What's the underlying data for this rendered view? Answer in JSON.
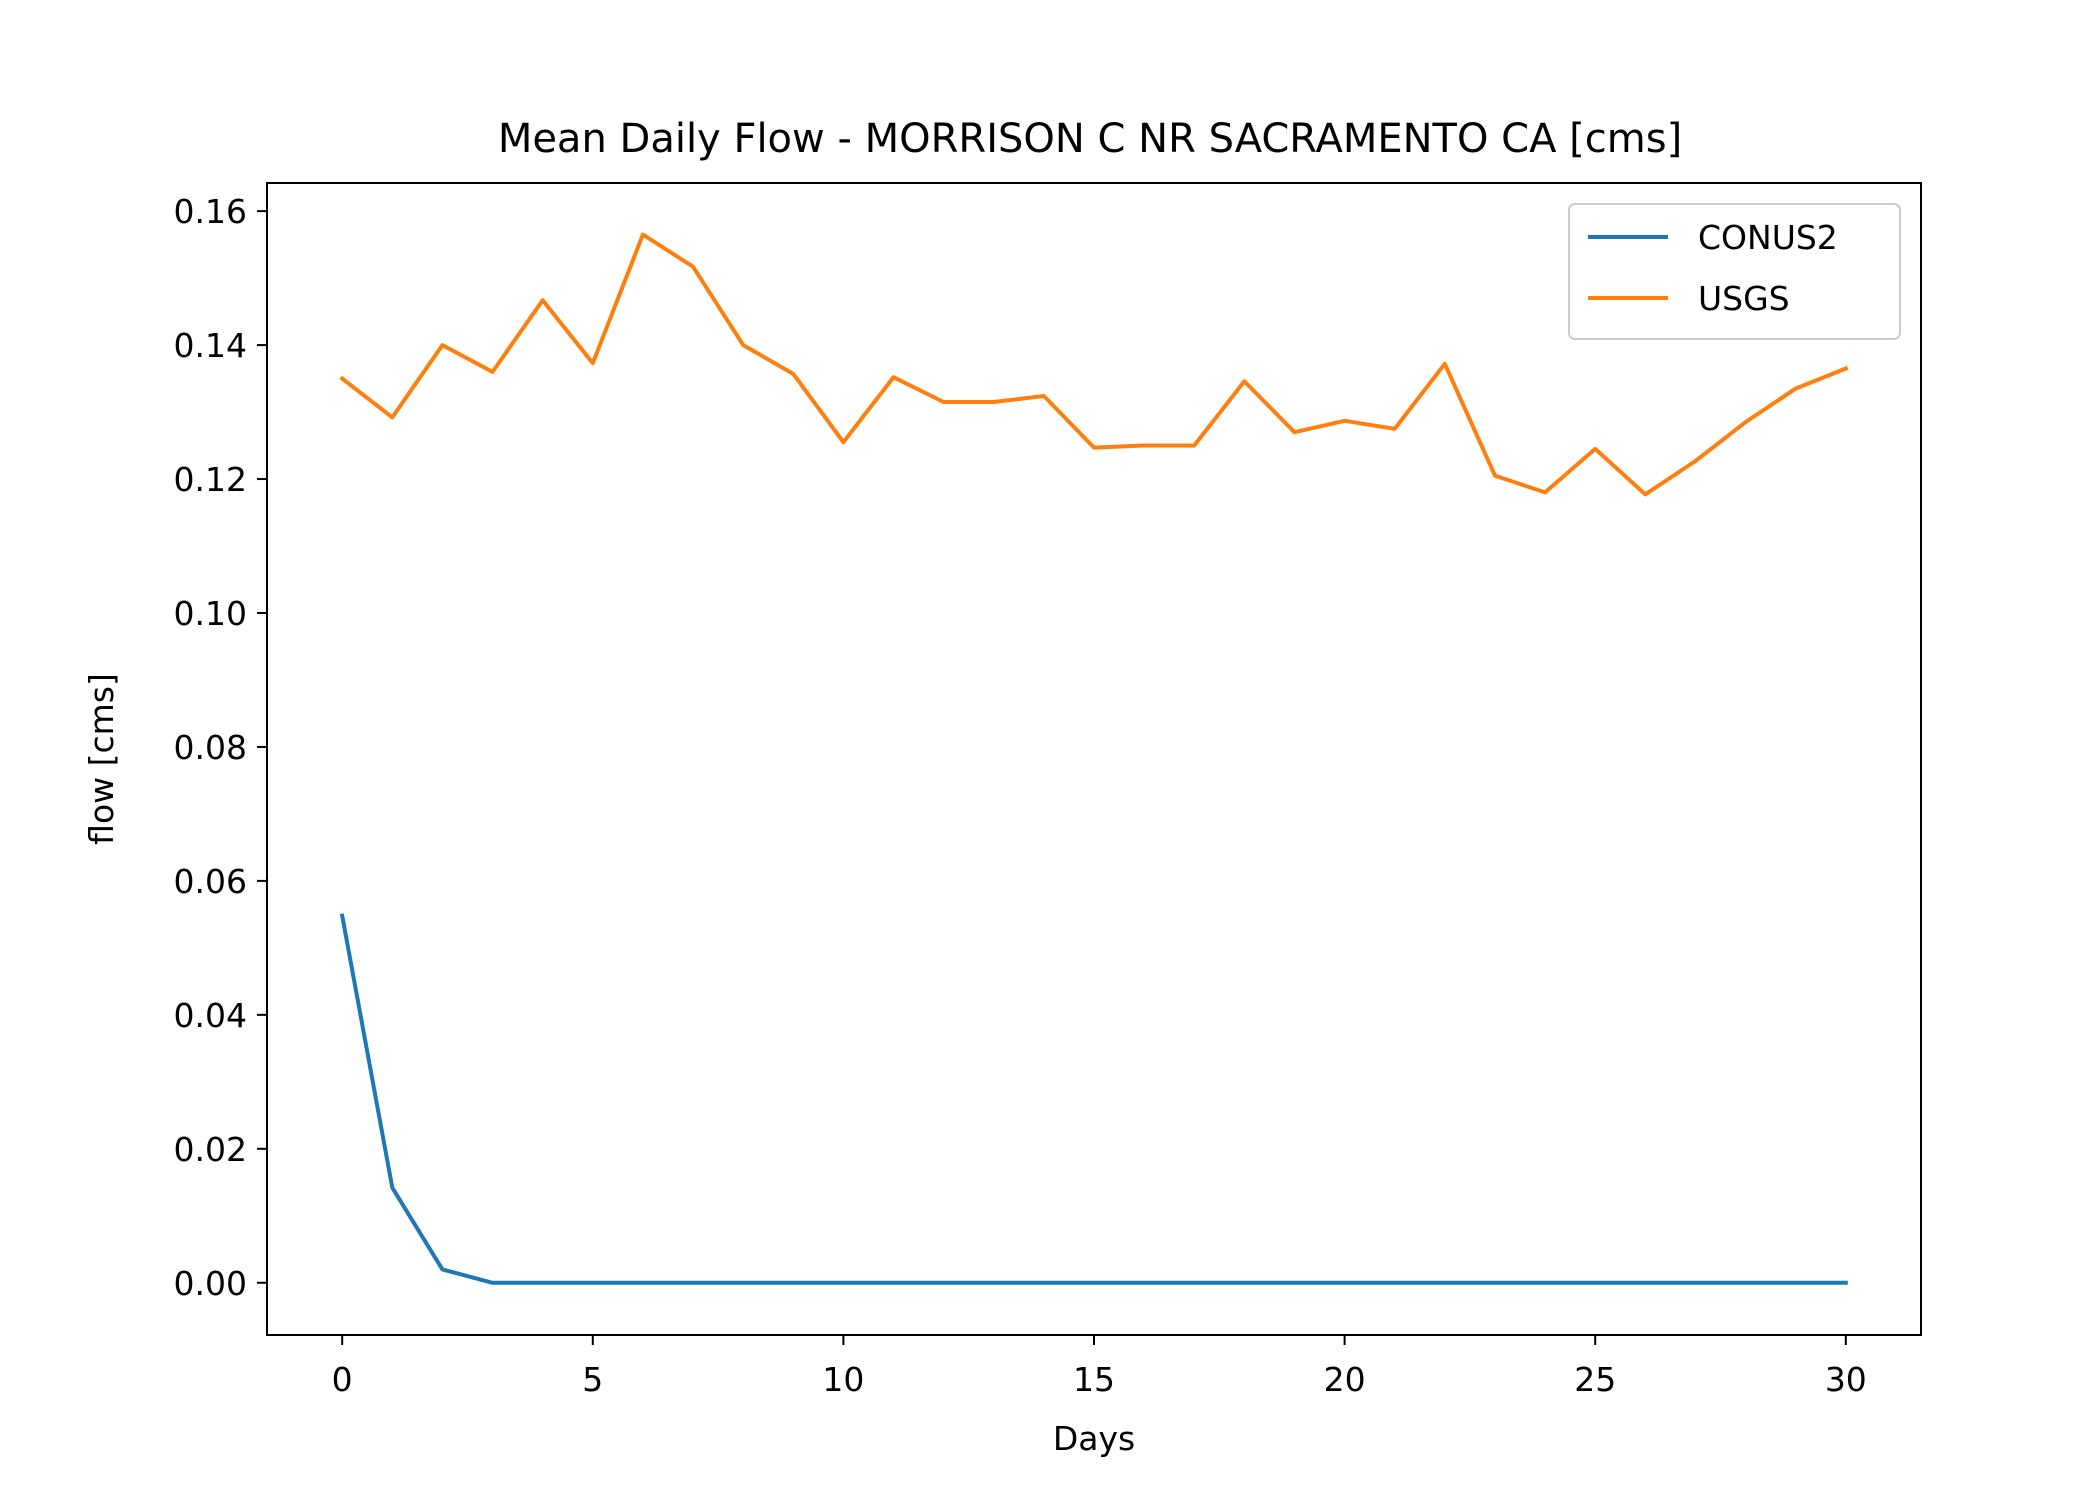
{
  "chart_data": {
    "type": "line",
    "title": "Mean Daily Flow - MORRISON C NR SACRAMENTO CA [cms]",
    "xlabel": "Days",
    "ylabel": "flow [cms]",
    "xlim": [
      -1.5,
      31.5
    ],
    "ylim": [
      -0.0078,
      0.1642
    ],
    "x_ticks": [
      0,
      5,
      10,
      15,
      20,
      25,
      30
    ],
    "x_tick_labels": [
      "0",
      "5",
      "10",
      "15",
      "20",
      "25",
      "30"
    ],
    "y_ticks": [
      0.0,
      0.02,
      0.04,
      0.06,
      0.08,
      0.1,
      0.12,
      0.14,
      0.16
    ],
    "y_tick_labels": [
      "0.00",
      "0.02",
      "0.04",
      "0.06",
      "0.08",
      "0.10",
      "0.12",
      "0.14",
      "0.16"
    ],
    "grid": false,
    "legend_position": "top-right",
    "x": [
      0,
      1,
      2,
      3,
      4,
      5,
      6,
      7,
      8,
      9,
      10,
      11,
      12,
      13,
      14,
      15,
      16,
      17,
      18,
      19,
      20,
      21,
      22,
      23,
      24,
      25,
      26,
      27,
      28,
      29,
      30
    ],
    "series": [
      {
        "name": "CONUS2",
        "color": "#1f77b4",
        "values": [
          0.0548,
          0.0142,
          0.002,
          0.0,
          0.0,
          0.0,
          0.0,
          0.0,
          0.0,
          0.0,
          0.0,
          0.0,
          0.0,
          0.0,
          0.0,
          0.0,
          0.0,
          0.0,
          0.0,
          0.0,
          0.0,
          0.0,
          0.0,
          0.0,
          0.0,
          0.0,
          0.0,
          0.0,
          0.0,
          0.0,
          0.0
        ]
      },
      {
        "name": "USGS",
        "color": "#ff7f0e",
        "values": [
          0.135,
          0.1292,
          0.14,
          0.136,
          0.1467,
          0.1373,
          0.1565,
          0.1517,
          0.14,
          0.1357,
          0.1255,
          0.1352,
          0.1315,
          0.1315,
          0.1324,
          0.1247,
          0.125,
          0.125,
          0.1346,
          0.127,
          0.1287,
          0.1275,
          0.1372,
          0.1205,
          0.118,
          0.1245,
          0.1177,
          0.1227,
          0.1285,
          0.1335,
          0.1365
        ]
      }
    ]
  }
}
